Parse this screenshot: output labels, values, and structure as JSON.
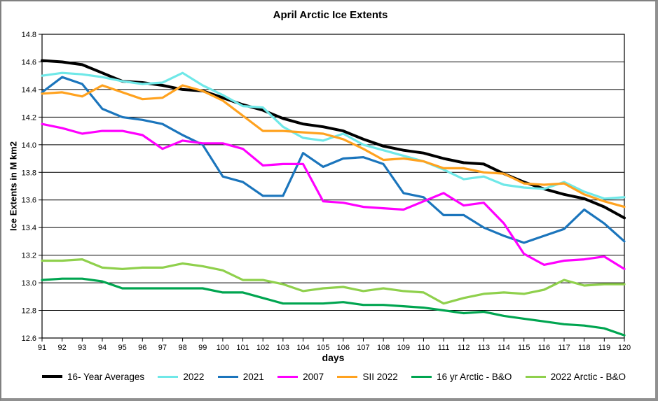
{
  "window": {
    "background_color": "#ffffff",
    "frame_border_color": "#808080"
  },
  "chart_data": {
    "type": "line",
    "title": "April Arctic Ice Extents",
    "xlabel": "days",
    "ylabel": "Ice Extents in M km2",
    "x": [
      91,
      92,
      93,
      94,
      95,
      96,
      97,
      98,
      99,
      100,
      101,
      102,
      103,
      104,
      105,
      106,
      107,
      108,
      109,
      110,
      111,
      112,
      113,
      114,
      115,
      116,
      117,
      118,
      119,
      120
    ],
    "ylim": [
      12.6,
      14.8
    ],
    "ytick_step": 0.2,
    "grid": true,
    "gridline_color": "#000000",
    "legend_position": "bottom",
    "series": [
      {
        "name": "16- Year Averages",
        "slug": "16-year-averages",
        "color": "#000000",
        "stroke_width": 4,
        "values": [
          14.61,
          14.6,
          14.58,
          14.52,
          14.46,
          14.45,
          14.43,
          14.4,
          14.39,
          14.34,
          14.29,
          14.25,
          14.19,
          14.15,
          14.13,
          14.1,
          14.04,
          13.99,
          13.96,
          13.94,
          13.9,
          13.87,
          13.86,
          13.79,
          13.73,
          13.68,
          13.64,
          13.61,
          13.55,
          13.47
        ]
      },
      {
        "name": "2022",
        "slug": "2022",
        "color": "#6FE8E8",
        "stroke_width": 3.2,
        "values": [
          14.5,
          14.52,
          14.51,
          14.49,
          14.46,
          14.44,
          14.45,
          14.52,
          14.43,
          14.36,
          14.28,
          14.27,
          14.13,
          14.05,
          14.03,
          14.08,
          14.0,
          13.96,
          13.92,
          13.88,
          13.82,
          13.75,
          13.77,
          13.71,
          13.69,
          13.68,
          13.73,
          13.66,
          13.61,
          13.62
        ]
      },
      {
        "name": "2021",
        "slug": "2021",
        "color": "#1B75BC",
        "stroke_width": 3.2,
        "values": [
          14.38,
          14.49,
          14.44,
          14.26,
          14.2,
          14.18,
          14.15,
          14.07,
          14.0,
          13.77,
          13.73,
          13.63,
          13.63,
          13.94,
          13.84,
          13.9,
          13.91,
          13.86,
          13.65,
          13.62,
          13.49,
          13.49,
          13.4,
          13.34,
          13.29,
          13.34,
          13.39,
          13.53,
          13.43,
          13.3
        ]
      },
      {
        "name": "2007",
        "slug": "2007",
        "color": "#FF00FF",
        "stroke_width": 3.2,
        "values": [
          14.15,
          14.12,
          14.08,
          14.1,
          14.1,
          14.07,
          13.97,
          14.03,
          14.01,
          14.01,
          13.97,
          13.85,
          13.86,
          13.86,
          13.59,
          13.58,
          13.55,
          13.54,
          13.53,
          13.59,
          13.65,
          13.56,
          13.58,
          13.43,
          13.21,
          13.13,
          13.16,
          13.17,
          13.19,
          13.1
        ]
      },
      {
        "name": "SII 2022",
        "slug": "sii-2022",
        "color": "#FFA21F",
        "stroke_width": 3.2,
        "values": [
          14.37,
          14.38,
          14.35,
          14.43,
          14.38,
          14.33,
          14.34,
          14.43,
          14.39,
          14.32,
          14.21,
          14.1,
          14.1,
          14.09,
          14.08,
          14.04,
          13.97,
          13.89,
          13.9,
          13.88,
          13.83,
          13.83,
          13.8,
          13.79,
          13.72,
          13.71,
          13.72,
          13.64,
          13.59,
          13.55
        ]
      },
      {
        "name": "16 yr Arctic - B&O",
        "slug": "16-yr-arctic-bo",
        "color": "#00A550",
        "stroke_width": 3.2,
        "values": [
          13.02,
          13.03,
          13.03,
          13.01,
          12.96,
          12.96,
          12.96,
          12.96,
          12.96,
          12.93,
          12.93,
          12.89,
          12.85,
          12.85,
          12.85,
          12.86,
          12.84,
          12.84,
          12.83,
          12.82,
          12.8,
          12.78,
          12.79,
          12.76,
          12.74,
          12.72,
          12.7,
          12.69,
          12.67,
          12.62
        ]
      },
      {
        "name": "2022 Arctic - B&O",
        "slug": "2022-arctic-bo",
        "color": "#8FD04C",
        "stroke_width": 3.2,
        "values": [
          13.16,
          13.16,
          13.17,
          13.11,
          13.1,
          13.11,
          13.11,
          13.14,
          13.12,
          13.09,
          13.02,
          13.02,
          12.99,
          12.94,
          12.96,
          12.97,
          12.94,
          12.96,
          12.94,
          12.93,
          12.85,
          12.89,
          12.92,
          12.93,
          12.92,
          12.95,
          13.02,
          12.98,
          12.99,
          12.99
        ]
      }
    ]
  }
}
